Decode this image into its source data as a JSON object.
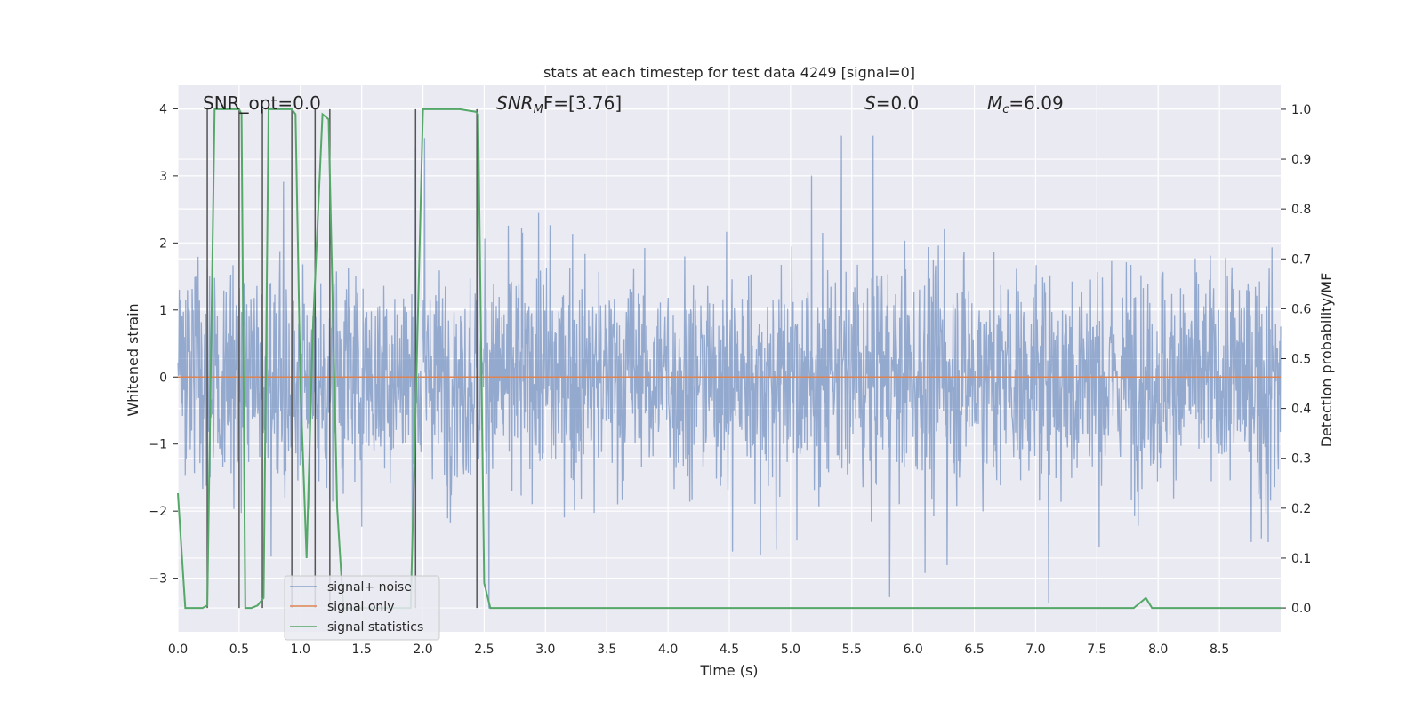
{
  "chart_data": {
    "type": "line",
    "title": "stats at each timestep for test data 4249 [signal=0]",
    "xlabel": "Time (s)",
    "ylabel": "Whitened strain",
    "y2label": "Detection probability/MF",
    "xlim": [
      0.0,
      9.0
    ],
    "ylim": [
      -3.8,
      4.35
    ],
    "y2lim": [
      -0.048,
      1.048
    ],
    "grid": true,
    "legend_position": "lower-left",
    "xticks": [
      "0.0",
      "0.5",
      "1.0",
      "1.5",
      "2.0",
      "2.5",
      "3.0",
      "3.5",
      "4.0",
      "4.5",
      "5.0",
      "5.5",
      "6.0",
      "6.5",
      "7.0",
      "7.5",
      "8.0",
      "8.5"
    ],
    "yticks": [
      "4",
      "3",
      "2",
      "1",
      "0",
      "−1",
      "−2",
      "−3"
    ],
    "y2ticks": [
      "1.0",
      "0.9",
      "0.8",
      "0.7",
      "0.6",
      "0.5",
      "0.4",
      "0.3",
      "0.2",
      "0.1",
      "0.0"
    ],
    "annotations": {
      "snr_opt": "SNR_opt=0.0",
      "snr_mf_main": "SNR",
      "snr_mf_sub": "M",
      "snr_mf_rest": "F=[3.76]",
      "s_main": "S",
      "s_rest": "=0.0",
      "mc_main": "M",
      "mc_sub": "c",
      "mc_rest": "=6.09"
    },
    "series": [
      {
        "name": "signal+ noise",
        "color": "#4c72b0",
        "description_values": "whitened noise fluctuating roughly between -3.4 and 3.6 across the full 0–9 s range",
        "amplitude_typical": 1.0,
        "amplitude_max": 3.6
      },
      {
        "name": "signal only",
        "color": "#dd8452",
        "x": [
          0.0,
          9.0
        ],
        "y": [
          0.0,
          0.0
        ]
      },
      {
        "name": "signal statistics",
        "color": "#55a868",
        "axis": "right",
        "x": [
          0.0,
          0.06,
          0.1,
          0.2,
          0.24,
          0.3,
          0.5,
          0.52,
          0.55,
          0.6,
          0.65,
          0.7,
          0.74,
          0.8,
          0.93,
          0.96,
          1.0,
          1.05,
          1.1,
          1.18,
          1.23,
          1.3,
          1.35,
          1.5,
          1.6,
          1.7,
          1.8,
          1.9,
          1.95,
          2.0,
          2.05,
          2.3,
          2.43,
          2.45,
          2.5,
          2.55,
          2.6,
          3.0,
          4.0,
          5.0,
          6.0,
          7.0,
          7.8,
          7.85,
          7.9,
          7.95,
          8.0,
          8.5,
          9.0
        ],
        "y": [
          0.23,
          0.0,
          0.0,
          0.0,
          0.005,
          1.0,
          1.0,
          0.99,
          0.0,
          0.0,
          0.005,
          0.02,
          1.0,
          1.0,
          1.0,
          0.99,
          0.45,
          0.1,
          0.55,
          0.99,
          0.98,
          0.2,
          0.0,
          0.0,
          0.0,
          0.0,
          0.0,
          0.0,
          0.5,
          1.0,
          1.0,
          1.0,
          0.995,
          0.99,
          0.05,
          0.0,
          0.0,
          0.0,
          0.0,
          0.0,
          0.0,
          0.0,
          0.0,
          0.01,
          0.02,
          0.0,
          0.0,
          0.0,
          0.0
        ]
      }
    ],
    "event_markers_x": [
      0.24,
      0.5,
      0.69,
      0.93,
      1.12,
      1.24,
      1.94,
      2.44
    ],
    "event_marker_color": "#555555"
  },
  "legend": {
    "items": [
      {
        "label": "signal+ noise",
        "color": "#4c72b0"
      },
      {
        "label": "signal only",
        "color": "#dd8452"
      },
      {
        "label": "signal statistics",
        "color": "#55a868"
      }
    ]
  },
  "style": {
    "plot_background": "#eaeaf2",
    "grid_color": "#ffffff",
    "noise_color": "#4c72b0",
    "noise_opacity": 0.55
  }
}
